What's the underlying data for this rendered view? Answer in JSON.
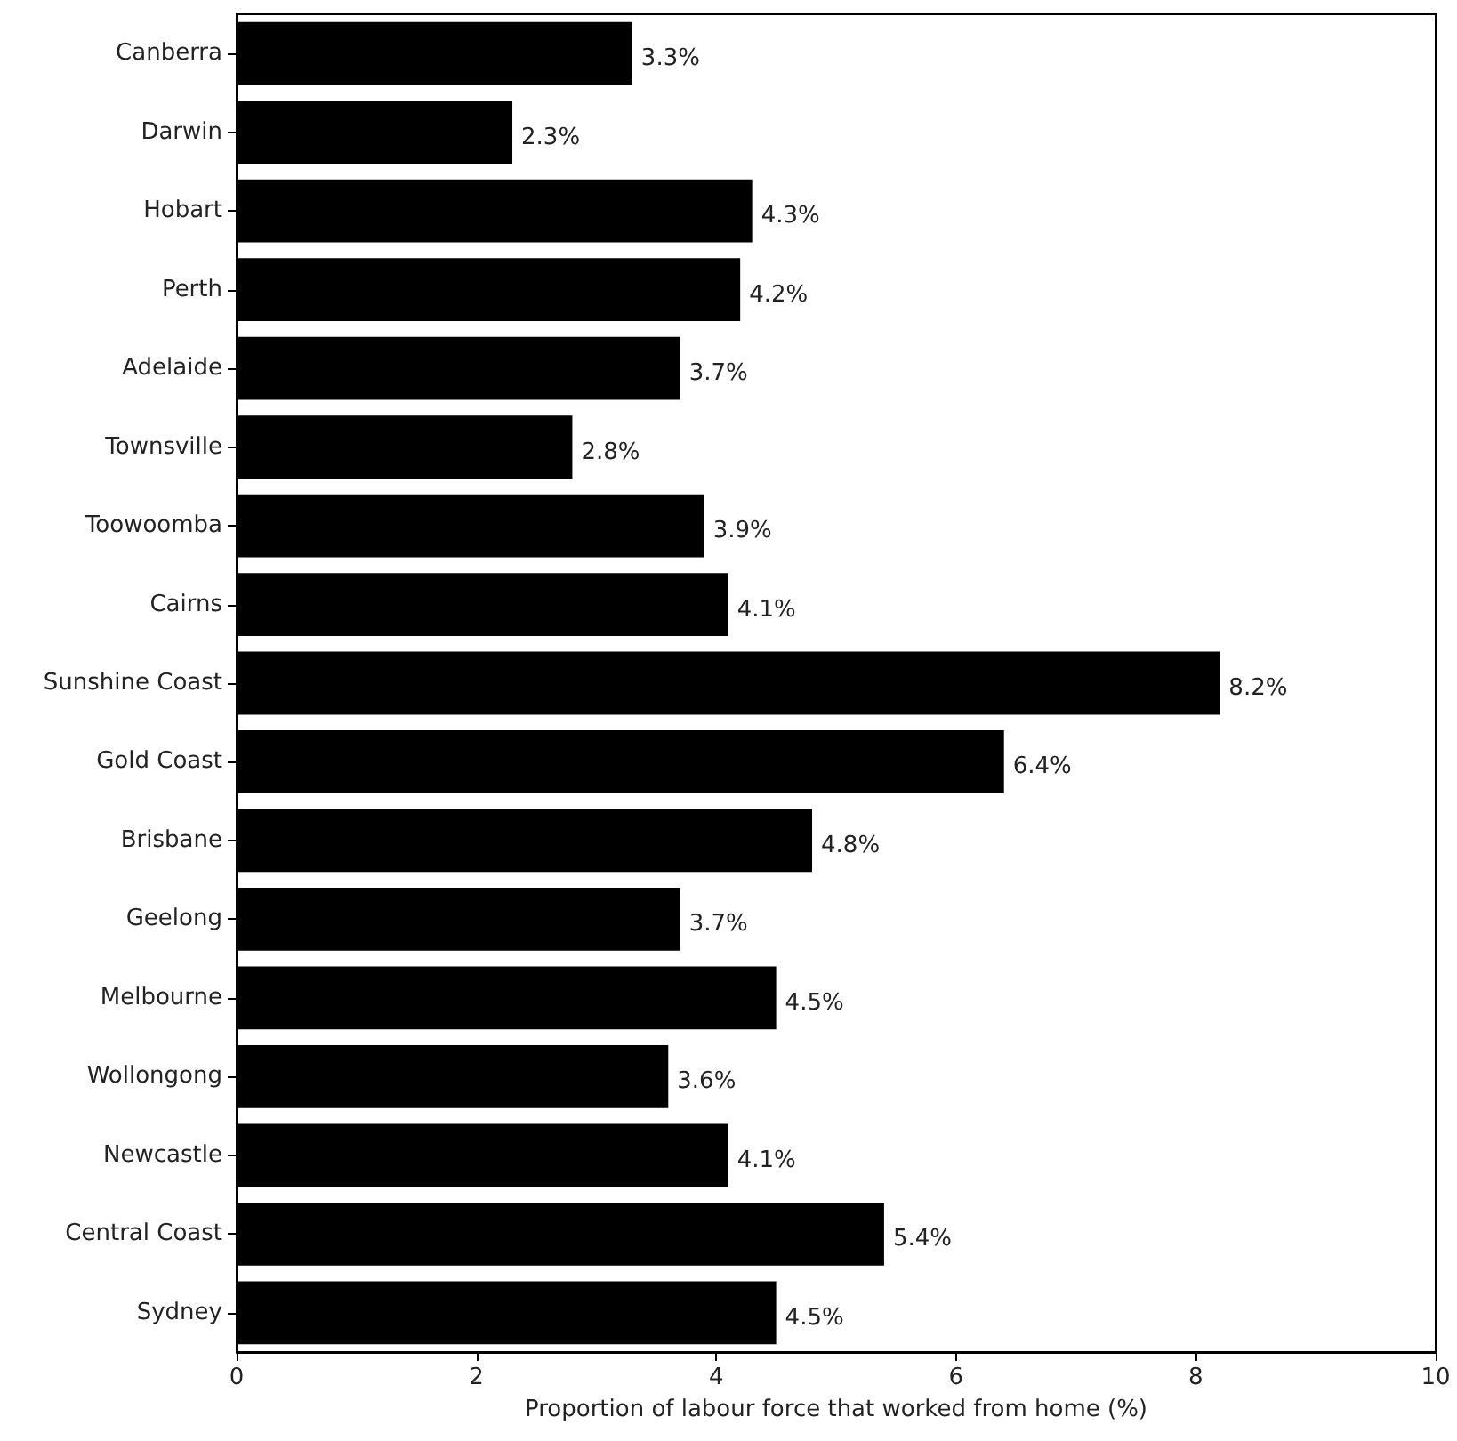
{
  "chart_data": {
    "type": "bar",
    "orientation": "horizontal",
    "xlabel": "Proportion of labour force that worked from home (%)",
    "categories": [
      "Canberra",
      "Darwin",
      "Hobart",
      "Perth",
      "Adelaide",
      "Townsville",
      "Toowoomba",
      "Cairns",
      "Sunshine Coast",
      "Gold Coast",
      "Brisbane",
      "Geelong",
      "Melbourne",
      "Wollongong",
      "Newcastle",
      "Central Coast",
      "Sydney"
    ],
    "values": [
      3.3,
      2.3,
      4.3,
      4.2,
      3.7,
      2.8,
      3.9,
      4.1,
      8.2,
      6.4,
      4.8,
      3.7,
      4.5,
      3.6,
      4.1,
      5.4,
      4.5
    ],
    "value_labels": [
      "3.3%",
      "2.3%",
      "4.3%",
      "4.2%",
      "3.7%",
      "2.8%",
      "3.9%",
      "4.1%",
      "8.2%",
      "6.4%",
      "4.8%",
      "3.7%",
      "4.5%",
      "3.6%",
      "4.1%",
      "5.4%",
      "4.5%"
    ],
    "color": "#000000",
    "xlim": [
      0,
      10
    ],
    "xticks": [
      0,
      2,
      4,
      6,
      8,
      10
    ],
    "grid": false
  }
}
